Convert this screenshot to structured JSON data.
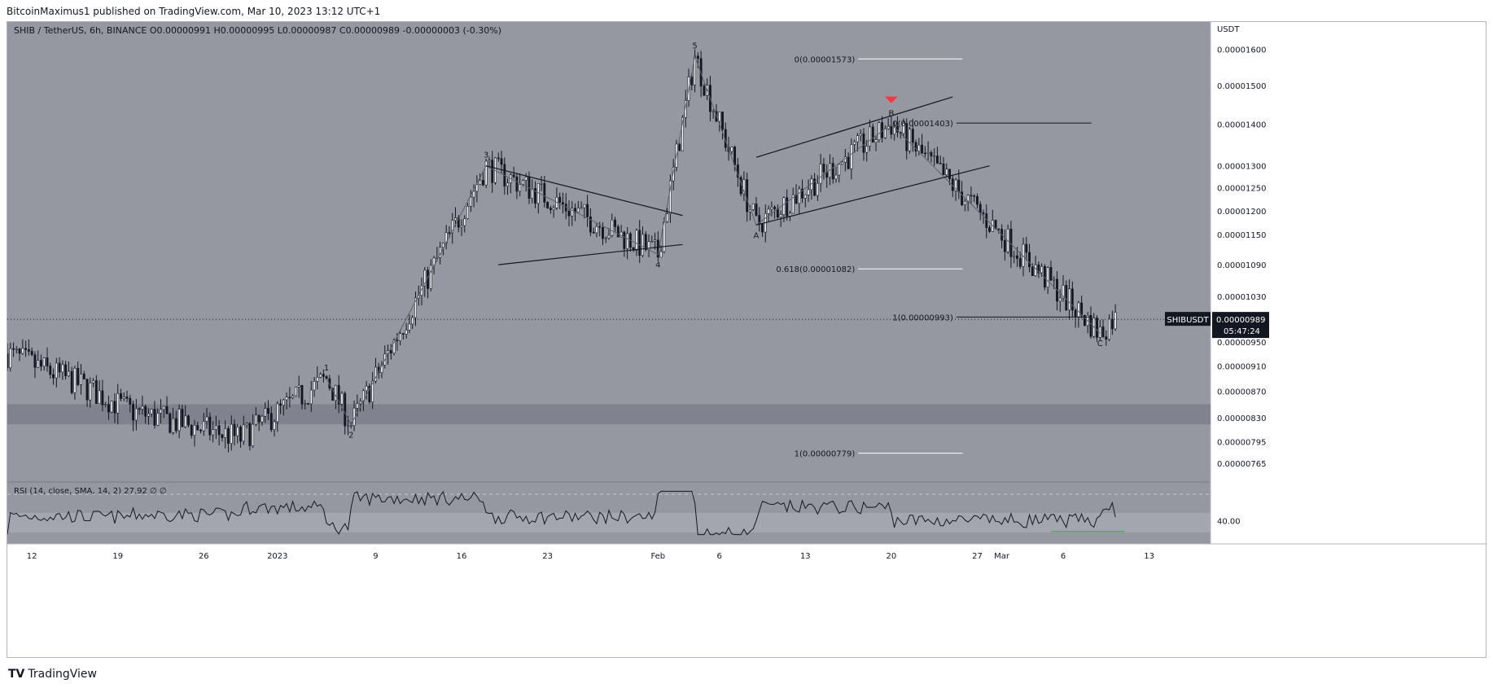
{
  "header": {
    "publisher_line": "BitcoinMaximus1 published on TradingView.com, Mar 10, 2023 13:12 UTC+1"
  },
  "legend": {
    "symbol": "SHIB / TetherUS, 6h, BINANCE",
    "o_label": "O",
    "o": "0.00000991",
    "h_label": "H",
    "h": "0.00000995",
    "l_label": "L",
    "l": "0.00000987",
    "c_label": "C",
    "c": "0.00000989",
    "change": "-0.00000003 (-0.30%)"
  },
  "price_axis": {
    "currency": "USDT",
    "ticks": [
      "0.00001600",
      "0.00001500",
      "0.00001400",
      "0.00001300",
      "0.00001250",
      "0.00001200",
      "0.00001150",
      "0.00001090",
      "0.00001030",
      "0.00000950",
      "0.00000910",
      "0.00000870",
      "0.00000830",
      "0.00000795",
      "0.00000765"
    ],
    "last_symbol": "SHIBUSDT",
    "last_price": "0.00000989",
    "countdown": "05:47:24"
  },
  "time_axis": {
    "ticks": [
      "12",
      "19",
      "26",
      "2023",
      "9",
      "16",
      "23",
      "Feb",
      "6",
      "13",
      "20",
      "27",
      "Mar",
      "6",
      "13"
    ]
  },
  "rsi": {
    "label": "RSI (14, close, SMA, 14, 2)",
    "value": "27.92",
    "extra": "∅  ∅",
    "ticks": [
      "40.00"
    ],
    "line_color": "#131722",
    "support_color": "#4caf50"
  },
  "wave_labels": [
    "1",
    "2",
    "3",
    "4",
    "5",
    "A",
    "B",
    "C"
  ],
  "fib_levels": [
    {
      "label": "0(0.00001573)"
    },
    {
      "label": "0(0.00001403)"
    },
    {
      "label": "0.618(0.00001082)"
    },
    {
      "label": "1(0.00000993)"
    },
    {
      "label": "1(0.00000779)"
    }
  ],
  "colors": {
    "pane_bg": "#9598a1",
    "support_zone": "#787b86",
    "candle": "#131722",
    "sell_marker": "#f23645",
    "price_tag_bg": "#131722",
    "price_tag_text": "#ffffff"
  },
  "chart_data": {
    "type": "candlestick",
    "symbol": "SHIB / TetherUS",
    "timeframe": "6h",
    "exchange": "BINANCE",
    "y_scale": "log",
    "ylim": [
      7.4e-06,
      1.68e-05
    ],
    "x_range": [
      "2022-12-10",
      "2023-03-18"
    ],
    "pivots": [
      {
        "label": "1",
        "date": "2023-01-05",
        "price": 8.9e-06
      },
      {
        "label": "2",
        "date": "2023-01-07",
        "price": 8.2e-06
      },
      {
        "label": "3",
        "date": "2023-01-18",
        "price": 1.3e-05
      },
      {
        "label": "4",
        "date": "2023-02-01",
        "price": 1.11e-05
      },
      {
        "label": "5",
        "date": "2023-02-04",
        "price": 1.58e-05
      },
      {
        "label": "A",
        "date": "2023-02-09",
        "price": 1.17e-05
      },
      {
        "label": "B",
        "date": "2023-02-20",
        "price": 1.4e-05
      },
      {
        "label": "C",
        "date": "2023-03-09",
        "price": 9.65e-06
      }
    ],
    "fib_retracements": [
      {
        "ratio": "0",
        "price": 1.573e-05
      },
      {
        "ratio": "0",
        "price": 1.403e-05
      },
      {
        "ratio": "0.618",
        "price": 1.082e-05
      },
      {
        "ratio": "1",
        "price": 9.93e-06
      },
      {
        "ratio": "1",
        "price": 7.79e-06
      }
    ],
    "support_zone": [
      8.2e-06,
      8.5e-06
    ],
    "last_close": 9.89e-06,
    "rsi_last": 27.92
  }
}
